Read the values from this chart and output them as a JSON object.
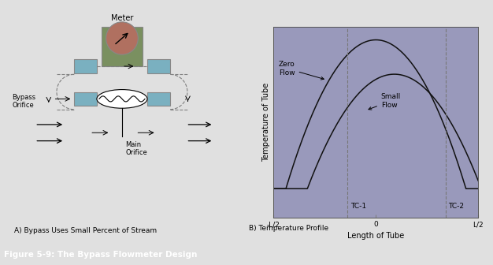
{
  "fig_bg": "#e0e0e0",
  "panel_bg": "#ffffff",
  "right_plot_bg": "#9999bb",
  "border_color": "#888888",
  "title_text": "Figure 5-9: The Bypass Flowmeter Design",
  "title_bg": "#000000",
  "title_color": "#ffffff",
  "left_caption": "A) Bypass Uses Small Percent of Stream",
  "right_caption": "B) Temperature Profile",
  "meter_box_color": "#7a9060",
  "meter_circle_color": "#b07060",
  "valve_box_color": "#7ab0c0",
  "xlabel": "Length of Tube",
  "ylabel": "Temperature of Tube",
  "tc1_label": "TC-1",
  "tc2_label": "TC-2",
  "zero_flow_label": "Zero\nFlow",
  "small_flow_label": "Small\nFlow",
  "curve_color": "#111111",
  "dashed_color": "#777777",
  "arrow_color": "#333333"
}
